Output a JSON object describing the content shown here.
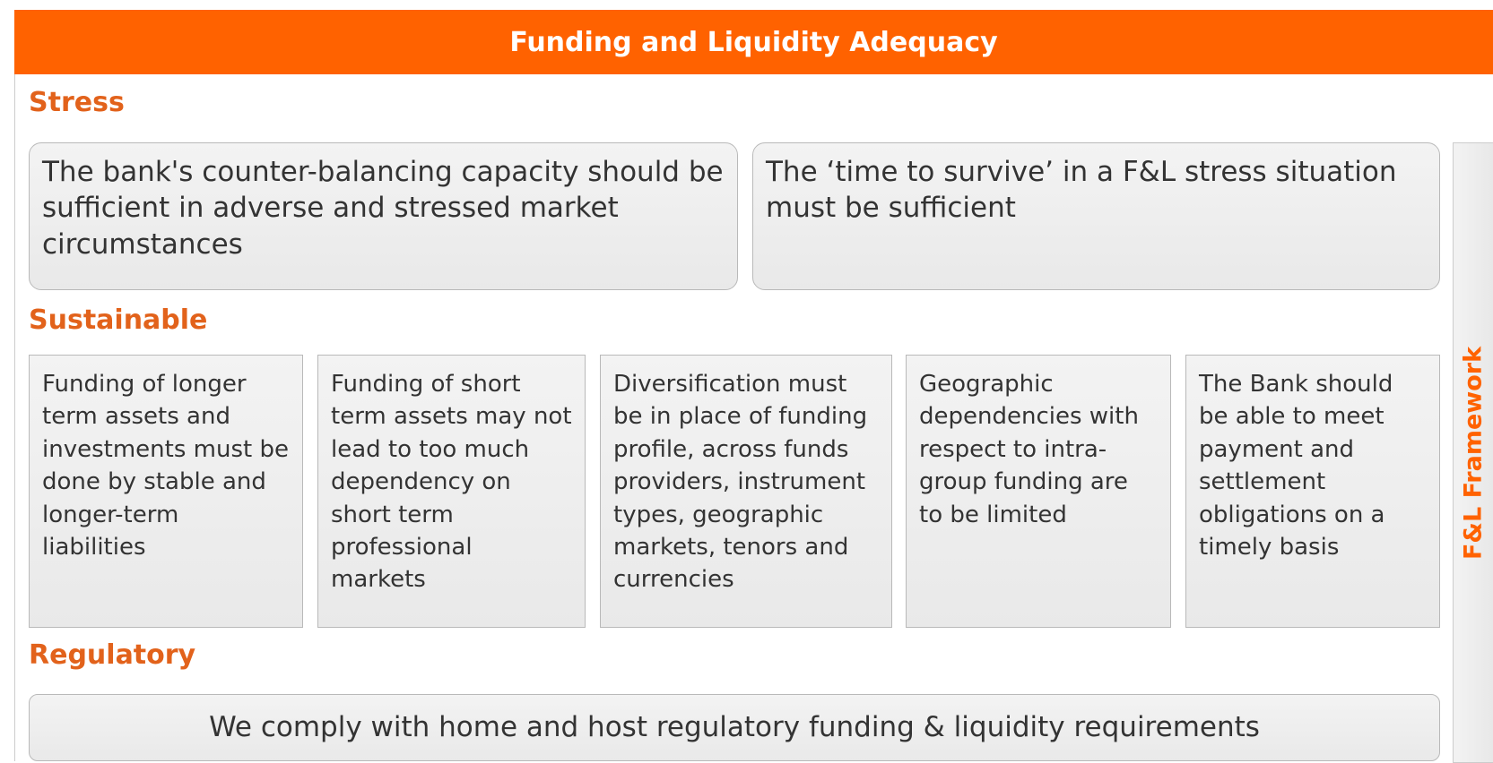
{
  "header": {
    "title": "Funding and Liquidity Adequacy"
  },
  "sections": [
    {
      "heading": "Stress",
      "items": [
        "The bank's counter-balancing capacity should be sufficient in adverse and stressed market circumstances",
        "The ‘time to survive’ in a F&L stress situation must be sufficient"
      ]
    },
    {
      "heading": "Sustainable",
      "items": [
        "Funding of longer term assets and investments must be done by stable and longer-term liabilities",
        "Funding of short term assets may not lead to too much dependency on short term professional markets",
        "Diversification must be in place of funding profile, across funds providers, instrument types, geographic markets, tenors and currencies",
        "Geographic dependencies with respect to intra-group funding are to be limited",
        "The Bank should be able to meet payment and settlement obligations on a timely basis"
      ]
    },
    {
      "heading": "Regulatory",
      "items": [
        "We comply with home and host regulatory funding & liquidity requirements"
      ]
    }
  ],
  "side_label": "F&L Framework"
}
